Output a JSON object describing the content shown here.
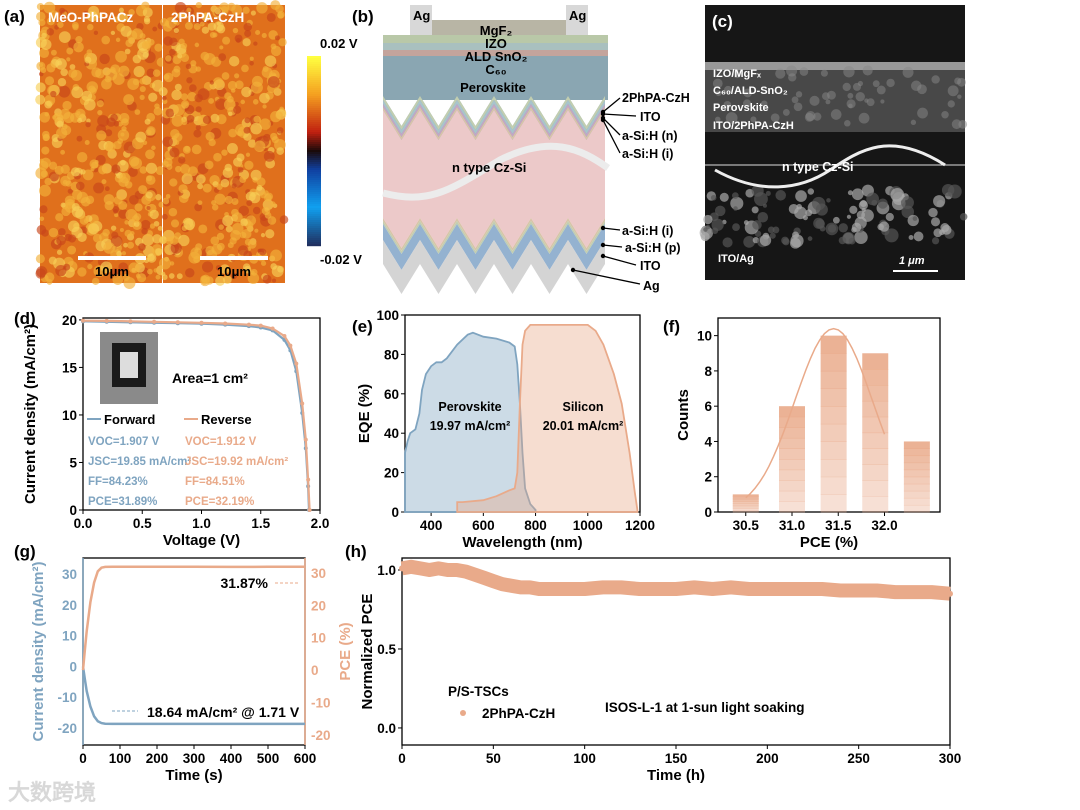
{
  "panel_labels": {
    "a": "(a)",
    "b": "(b)",
    "c": "(c)",
    "d": "(d)",
    "e": "(e)",
    "f": "(f)",
    "g": "(g)",
    "h": "(h)"
  },
  "panel_a": {
    "map_titles": [
      "MeO-PhPACz",
      "2PhPA-CzH"
    ],
    "scalebar": "10μm",
    "colorbar_max": "0.02 V",
    "colorbar_min": "-0.02 V"
  },
  "panel_b": {
    "top_contacts": [
      "Ag",
      "Ag"
    ],
    "layers_top": [
      "MgF₂",
      "IZO",
      "ALD SnO₂",
      "C₆₀",
      "Perovskite"
    ],
    "right_labels_top": [
      "2PhPA-CzH",
      "ITO",
      "a-Si:H (n)",
      "a-Si:H (i)"
    ],
    "center_label": "n type Cz-Si",
    "right_labels_bottom": [
      "a-Si:H (i)",
      "a-Si:H (p)",
      "ITO",
      "Ag"
    ]
  },
  "panel_c": {
    "labels": [
      "IZO/MgFₓ",
      "C₆₀/ALD-SnO₂",
      "Perovskite",
      "ITO/2PhPA-CzH"
    ],
    "center_label": "n type Cz-Si",
    "bottom_label": "ITO/Ag",
    "scalebar": "1 μm"
  },
  "chart_data": [
    {
      "id": "d",
      "type": "line",
      "xlabel": "Voltage (V)",
      "ylabel": "Current density (mA/cm²)",
      "xlim": [
        0,
        2
      ],
      "ylim": [
        0,
        20.2
      ],
      "xticks": [
        0,
        0.5,
        1.0,
        1.5,
        2.0
      ],
      "xtick_labels": [
        "0.0",
        "0.5",
        "1.0",
        "1.5",
        "2.0"
      ],
      "yticks": [
        0,
        5,
        10,
        15,
        20
      ],
      "ytick_labels": [
        "0",
        "5",
        "10",
        "15",
        "20"
      ],
      "annotation": "Area=1 cm²",
      "series": [
        {
          "name": "Forward",
          "color": "#7fa4c0",
          "x": [
            0,
            0.2,
            0.4,
            0.6,
            0.8,
            1.0,
            1.2,
            1.4,
            1.5,
            1.6,
            1.7,
            1.75,
            1.8,
            1.85,
            1.88,
            1.9,
            1.907
          ],
          "y": [
            19.85,
            19.8,
            19.75,
            19.7,
            19.65,
            19.6,
            19.5,
            19.35,
            19.2,
            18.9,
            17.9,
            16.8,
            14.6,
            10.2,
            6.5,
            2.5,
            0
          ],
          "stats": [
            "VOC=1.907 V",
            "JSC=19.85 mA/cm²",
            "FF=84.23%",
            "PCE=31.89%"
          ]
        },
        {
          "name": "Reverse",
          "color": "#e9aa8a",
          "x": [
            0,
            0.2,
            0.4,
            0.6,
            0.8,
            1.0,
            1.2,
            1.4,
            1.5,
            1.6,
            1.7,
            1.75,
            1.8,
            1.85,
            1.88,
            1.9,
            1.912
          ],
          "y": [
            19.92,
            19.9,
            19.85,
            19.8,
            19.75,
            19.7,
            19.62,
            19.5,
            19.4,
            19.1,
            18.3,
            17.3,
            15.4,
            11.2,
            7.4,
            3.2,
            0
          ],
          "stats": [
            "VOC=1.912 V",
            "JSC=19.92 mA/cm²",
            "FF=84.51%",
            "PCE=32.19%"
          ]
        }
      ]
    },
    {
      "id": "e",
      "type": "area",
      "xlabel": "Wavelength (nm)",
      "ylabel": "EQE (%)",
      "xlim": [
        300,
        1200
      ],
      "ylim": [
        0,
        100
      ],
      "xticks": [
        400,
        600,
        800,
        1000,
        1200
      ],
      "xtick_labels": [
        "400",
        "600",
        "800",
        "1000",
        "1200"
      ],
      "yticks": [
        0,
        20,
        40,
        60,
        80,
        100
      ],
      "ytick_labels": [
        "0",
        "20",
        "40",
        "60",
        "80",
        "100"
      ],
      "series": [
        {
          "name": "Perovskite",
          "current": "19.97 mA/cm²",
          "color": "#7fa4c0",
          "x": [
            300,
            310,
            320,
            340,
            355,
            365,
            380,
            400,
            420,
            440,
            460,
            500,
            540,
            560,
            600,
            650,
            700,
            720,
            730,
            740,
            750,
            760,
            780,
            800
          ],
          "y": [
            30,
            36,
            40,
            42,
            50,
            62,
            70,
            74,
            76,
            76,
            78,
            85,
            90,
            91,
            89,
            88,
            86,
            84,
            75,
            55,
            30,
            12,
            4,
            1
          ]
        },
        {
          "name": "Silicon",
          "current": "20.01 mA/cm²",
          "color": "#e9aa8a",
          "x": [
            500,
            520,
            600,
            650,
            700,
            720,
            730,
            740,
            750,
            760,
            780,
            800,
            900,
            1000,
            1030,
            1060,
            1100,
            1130,
            1160,
            1180,
            1190
          ],
          "y": [
            5,
            5,
            6,
            8,
            11,
            12,
            20,
            55,
            85,
            92,
            95,
            95,
            95,
            95,
            92,
            85,
            70,
            55,
            30,
            10,
            1
          ]
        }
      ]
    },
    {
      "id": "f",
      "type": "bar",
      "xlabel": "PCE (%)",
      "ylabel": "Counts",
      "xlim": [
        30.2,
        32.6
      ],
      "ylim": [
        0,
        11
      ],
      "xticks": [
        30.5,
        31.0,
        31.5,
        32.0
      ],
      "xtick_labels": [
        "30.5",
        "31.0",
        "31.5",
        "32.0"
      ],
      "yticks": [
        0,
        2,
        4,
        6,
        8,
        10
      ],
      "ytick_labels": [
        "0",
        "2",
        "4",
        "6",
        "8",
        "10"
      ],
      "bar_centers": [
        30.5,
        31.0,
        31.45,
        31.9,
        32.35
      ],
      "values": [
        1,
        6,
        10,
        9,
        4
      ],
      "fit": {
        "type": "gaussian",
        "peak": 10.4,
        "mean": 31.45,
        "sigma": 0.42
      },
      "color": "#e9aa8a"
    },
    {
      "id": "g",
      "type": "line",
      "xlabel": "Time (s)",
      "ylabel_left": "Current density (mA/cm²)",
      "ylabel_right": "PCE (%)",
      "xlim": [
        0,
        600
      ],
      "ylim_left": [
        -25.5,
        35.2
      ],
      "ylim_right": [
        -23.1,
        34.6
      ],
      "xticks": [
        0,
        100,
        200,
        300,
        400,
        500,
        600
      ],
      "xtick_labels": [
        "0",
        "100",
        "200",
        "300",
        "400",
        "500",
        "600"
      ],
      "yticks_left": [
        -20,
        -10,
        0,
        10,
        20,
        30
      ],
      "ytick_labels_left": [
        "-20",
        "-10",
        "0",
        "10",
        "20",
        "30"
      ],
      "yticks_right": [
        -20,
        -10,
        0,
        10,
        20,
        30
      ],
      "ytick_labels_right": [
        "-20",
        "-10",
        "0",
        "10",
        "20",
        "30"
      ],
      "series": [
        {
          "name": "Current density",
          "axis": "left",
          "color": "#7fa4c0",
          "x": [
            0,
            5,
            10,
            20,
            30,
            40,
            50,
            60,
            80,
            100,
            200,
            300,
            400,
            500,
            600
          ],
          "y": [
            0,
            -4,
            -8,
            -13,
            -16.2,
            -17.8,
            -18.4,
            -18.6,
            -18.64,
            -18.64,
            -18.64,
            -18.64,
            -18.64,
            -18.64,
            -18.64
          ],
          "annotation": "18.64 mA/cm² @ 1.71 V"
        },
        {
          "name": "PCE",
          "axis": "right",
          "color": "#e9aa8a",
          "x": [
            0,
            5,
            10,
            20,
            30,
            40,
            50,
            60,
            80,
            100,
            200,
            300,
            400,
            500,
            600
          ],
          "y": [
            0,
            6,
            12,
            21,
            27,
            30.5,
            31.6,
            31.85,
            31.87,
            31.87,
            31.9,
            31.87,
            31.85,
            31.87,
            31.87
          ],
          "annotation": "31.87%"
        }
      ]
    },
    {
      "id": "h",
      "type": "scatter",
      "xlabel": "Time (h)",
      "ylabel": "Normalized PCE",
      "xlim": [
        0,
        300
      ],
      "ylim": [
        -0.108,
        1.076
      ],
      "xticks": [
        0,
        50,
        100,
        150,
        200,
        250,
        300
      ],
      "xtick_labels": [
        "0",
        "50",
        "100",
        "150",
        "200",
        "250",
        "300"
      ],
      "yticks": [
        0,
        0.5,
        1.0
      ],
      "ytick_labels": [
        "0.0",
        "0.5",
        "1.0"
      ],
      "legend_title": "P/S-TSCs",
      "annotation": "ISOS-L-1 at 1-sun light soaking",
      "series": [
        {
          "name": "2PhPA-CzH",
          "color": "#e9aa8a",
          "x": [
            0,
            5,
            10,
            15,
            20,
            25,
            30,
            35,
            40,
            45,
            50,
            55,
            60,
            65,
            70,
            75,
            80,
            90,
            100,
            110,
            120,
            130,
            140,
            150,
            160,
            170,
            180,
            190,
            200,
            210,
            220,
            230,
            240,
            250,
            260,
            270,
            280,
            290,
            300
          ],
          "y": [
            1.01,
            1.02,
            1.01,
            1.0,
            1.01,
            1.0,
            1.0,
            0.99,
            0.97,
            0.95,
            0.93,
            0.91,
            0.9,
            0.89,
            0.89,
            0.88,
            0.88,
            0.88,
            0.88,
            0.89,
            0.89,
            0.88,
            0.88,
            0.88,
            0.89,
            0.88,
            0.89,
            0.88,
            0.88,
            0.88,
            0.88,
            0.88,
            0.87,
            0.87,
            0.87,
            0.86,
            0.86,
            0.86,
            0.85
          ]
        }
      ]
    }
  ],
  "watermark": "大数跨境"
}
